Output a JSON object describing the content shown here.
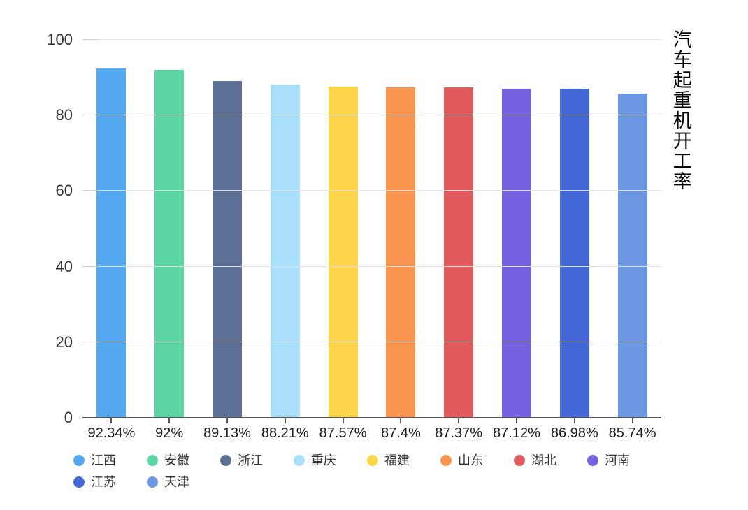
{
  "title": {
    "text": "汽车起重机开工率"
  },
  "chart_data": {
    "type": "bar",
    "title": "汽车起重机开工率",
    "categories": [
      "江西",
      "安徽",
      "浙江",
      "重庆",
      "福建",
      "山东",
      "湖北",
      "河南",
      "江苏",
      "天津"
    ],
    "values": [
      92.34,
      92,
      89.13,
      88.21,
      87.57,
      87.4,
      87.37,
      87.12,
      86.98,
      85.74
    ],
    "value_labels": [
      "92.34%",
      "92%",
      "89.13%",
      "88.21%",
      "87.57%",
      "87.4%",
      "87.37%",
      "87.12%",
      "86.98%",
      "85.74%"
    ],
    "colors": [
      "#54A8F0",
      "#5BD6A2",
      "#5C7096",
      "#A9DFFA",
      "#FCD54A",
      "#FA9550",
      "#E15B5C",
      "#7562E0",
      "#4467D8",
      "#6C97E3"
    ],
    "xlabel": "",
    "ylabel": "",
    "ylim": [
      0,
      100
    ],
    "yticks": [
      0,
      20,
      40,
      60,
      80,
      100
    ],
    "grid": true,
    "legend_position": "bottom",
    "legend_items_per_row": 8,
    "axis_colors": {
      "baseline": "#555555",
      "gridline": "#e2e2e2",
      "tick_label": "#333333",
      "value_label": "#1a1a1a"
    }
  }
}
